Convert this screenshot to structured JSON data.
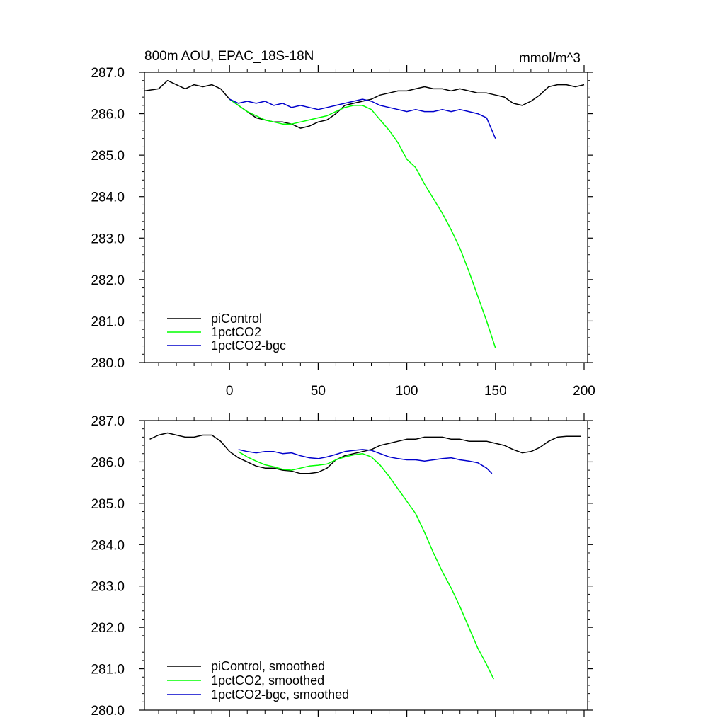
{
  "chart_data": [
    {
      "type": "line",
      "title": "800m AOU, EPAC_18S-18N",
      "units": "mmol/m^3",
      "xlim": [
        -48,
        202
      ],
      "ylim": [
        280.0,
        287.0
      ],
      "x_ticks": [
        0,
        50,
        100,
        150,
        200
      ],
      "x_tick_labels": [
        "0",
        "50",
        "100",
        "150",
        "200"
      ],
      "y_ticks": [
        280.0,
        281.0,
        282.0,
        283.0,
        284.0,
        285.0,
        286.0,
        287.0
      ],
      "y_tick_labels": [
        "280.0",
        "281.0",
        "282.0",
        "283.0",
        "284.0",
        "285.0",
        "286.0",
        "287.0"
      ],
      "legend_position": "bottom-left",
      "series": [
        {
          "name": "piControl",
          "color": "#000000",
          "x": [
            -48,
            -40,
            -35,
            -30,
            -25,
            -20,
            -15,
            -10,
            -5,
            0,
            5,
            10,
            15,
            20,
            25,
            30,
            35,
            40,
            45,
            50,
            55,
            60,
            65,
            70,
            75,
            80,
            85,
            90,
            95,
            100,
            105,
            110,
            115,
            120,
            125,
            130,
            135,
            140,
            145,
            150,
            155,
            160,
            165,
            170,
            175,
            180,
            185,
            190,
            195,
            200
          ],
          "y": [
            286.55,
            286.6,
            286.8,
            286.7,
            286.6,
            286.7,
            286.65,
            286.7,
            286.6,
            286.35,
            286.2,
            286.05,
            285.9,
            285.85,
            285.8,
            285.8,
            285.75,
            285.65,
            285.7,
            285.8,
            285.85,
            286.0,
            286.2,
            286.25,
            286.3,
            286.35,
            286.45,
            286.5,
            286.55,
            286.55,
            286.6,
            286.65,
            286.6,
            286.6,
            286.55,
            286.6,
            286.55,
            286.5,
            286.5,
            286.45,
            286.4,
            286.25,
            286.2,
            286.3,
            286.45,
            286.65,
            286.7,
            286.7,
            286.65,
            286.7
          ]
        },
        {
          "name": "1pctCO2",
          "color": "#00ff00",
          "x": [
            0,
            5,
            10,
            15,
            20,
            25,
            30,
            35,
            40,
            45,
            50,
            55,
            60,
            65,
            70,
            75,
            80,
            85,
            90,
            95,
            100,
            105,
            110,
            115,
            120,
            125,
            130,
            135,
            140,
            145,
            150
          ],
          "y": [
            286.35,
            286.2,
            286.05,
            285.95,
            285.85,
            285.8,
            285.75,
            285.75,
            285.8,
            285.85,
            285.9,
            285.95,
            286.05,
            286.15,
            286.2,
            286.2,
            286.1,
            285.85,
            285.6,
            285.3,
            284.9,
            284.7,
            284.3,
            283.95,
            283.6,
            283.2,
            282.75,
            282.2,
            281.6,
            281.0,
            280.35
          ]
        },
        {
          "name": "1pctCO2-bgc",
          "color": "#0000cc",
          "x": [
            0,
            5,
            10,
            15,
            20,
            25,
            30,
            35,
            40,
            45,
            50,
            55,
            60,
            65,
            70,
            75,
            80,
            85,
            90,
            95,
            100,
            105,
            110,
            115,
            120,
            125,
            130,
            135,
            140,
            145,
            150
          ],
          "y": [
            286.35,
            286.25,
            286.3,
            286.25,
            286.3,
            286.2,
            286.25,
            286.15,
            286.2,
            286.15,
            286.1,
            286.15,
            286.2,
            286.25,
            286.3,
            286.35,
            286.3,
            286.2,
            286.15,
            286.1,
            286.05,
            286.1,
            286.05,
            286.05,
            286.1,
            286.05,
            286.1,
            286.05,
            286.0,
            285.9,
            285.4
          ]
        }
      ]
    },
    {
      "type": "line",
      "xlim": [
        -48,
        202
      ],
      "ylim": [
        280.0,
        287.0
      ],
      "x_ticks": [
        0,
        50,
        100,
        150,
        200
      ],
      "y_ticks": [
        280.0,
        281.0,
        282.0,
        283.0,
        284.0,
        285.0,
        286.0,
        287.0
      ],
      "y_tick_labels": [
        "280.0",
        "281.0",
        "282.0",
        "283.0",
        "284.0",
        "285.0",
        "286.0",
        "287.0"
      ],
      "legend_position": "bottom-left",
      "series": [
        {
          "name": "piControl, smoothed",
          "color": "#000000",
          "x": [
            -45,
            -40,
            -35,
            -30,
            -25,
            -20,
            -15,
            -10,
            -5,
            0,
            5,
            10,
            15,
            20,
            25,
            30,
            35,
            40,
            45,
            50,
            55,
            60,
            65,
            70,
            75,
            80,
            85,
            90,
            95,
            100,
            105,
            110,
            115,
            120,
            125,
            130,
            135,
            140,
            145,
            150,
            155,
            160,
            165,
            170,
            175,
            180,
            185,
            190,
            195,
            198
          ],
          "y": [
            286.55,
            286.65,
            286.7,
            286.65,
            286.6,
            286.6,
            286.65,
            286.65,
            286.5,
            286.25,
            286.1,
            286.0,
            285.9,
            285.85,
            285.85,
            285.8,
            285.78,
            285.72,
            285.72,
            285.75,
            285.85,
            286.05,
            286.15,
            286.2,
            286.25,
            286.3,
            286.4,
            286.45,
            286.5,
            286.55,
            286.55,
            286.6,
            286.6,
            286.6,
            286.55,
            286.55,
            286.5,
            286.5,
            286.5,
            286.45,
            286.4,
            286.3,
            286.22,
            286.25,
            286.35,
            286.5,
            286.6,
            286.62,
            286.62,
            286.62
          ]
        },
        {
          "name": "1pctCO2, smoothed",
          "color": "#00ff00",
          "x": [
            5,
            10,
            15,
            20,
            25,
            30,
            35,
            40,
            45,
            50,
            55,
            60,
            65,
            70,
            75,
            80,
            85,
            90,
            95,
            100,
            105,
            110,
            115,
            120,
            125,
            130,
            135,
            140,
            145,
            149
          ],
          "y": [
            286.25,
            286.12,
            286.02,
            285.93,
            285.88,
            285.82,
            285.8,
            285.85,
            285.9,
            285.92,
            285.95,
            286.05,
            286.12,
            286.17,
            286.2,
            286.12,
            285.92,
            285.65,
            285.35,
            285.05,
            284.75,
            284.3,
            283.8,
            283.35,
            282.95,
            282.5,
            282.0,
            281.5,
            281.1,
            280.75
          ]
        },
        {
          "name": "1pctCO2-bgc, smoothed",
          "color": "#0000cc",
          "x": [
            5,
            10,
            15,
            20,
            25,
            30,
            35,
            40,
            45,
            50,
            55,
            60,
            65,
            70,
            75,
            80,
            85,
            90,
            95,
            100,
            105,
            110,
            115,
            120,
            125,
            130,
            135,
            140,
            145,
            148
          ],
          "y": [
            286.3,
            286.25,
            286.22,
            286.25,
            286.25,
            286.2,
            286.22,
            286.15,
            286.1,
            286.08,
            286.12,
            286.18,
            286.25,
            286.28,
            286.3,
            286.28,
            286.2,
            286.12,
            286.08,
            286.05,
            286.05,
            286.02,
            286.05,
            286.08,
            286.1,
            286.05,
            286.02,
            285.98,
            285.85,
            285.72
          ]
        }
      ]
    }
  ]
}
